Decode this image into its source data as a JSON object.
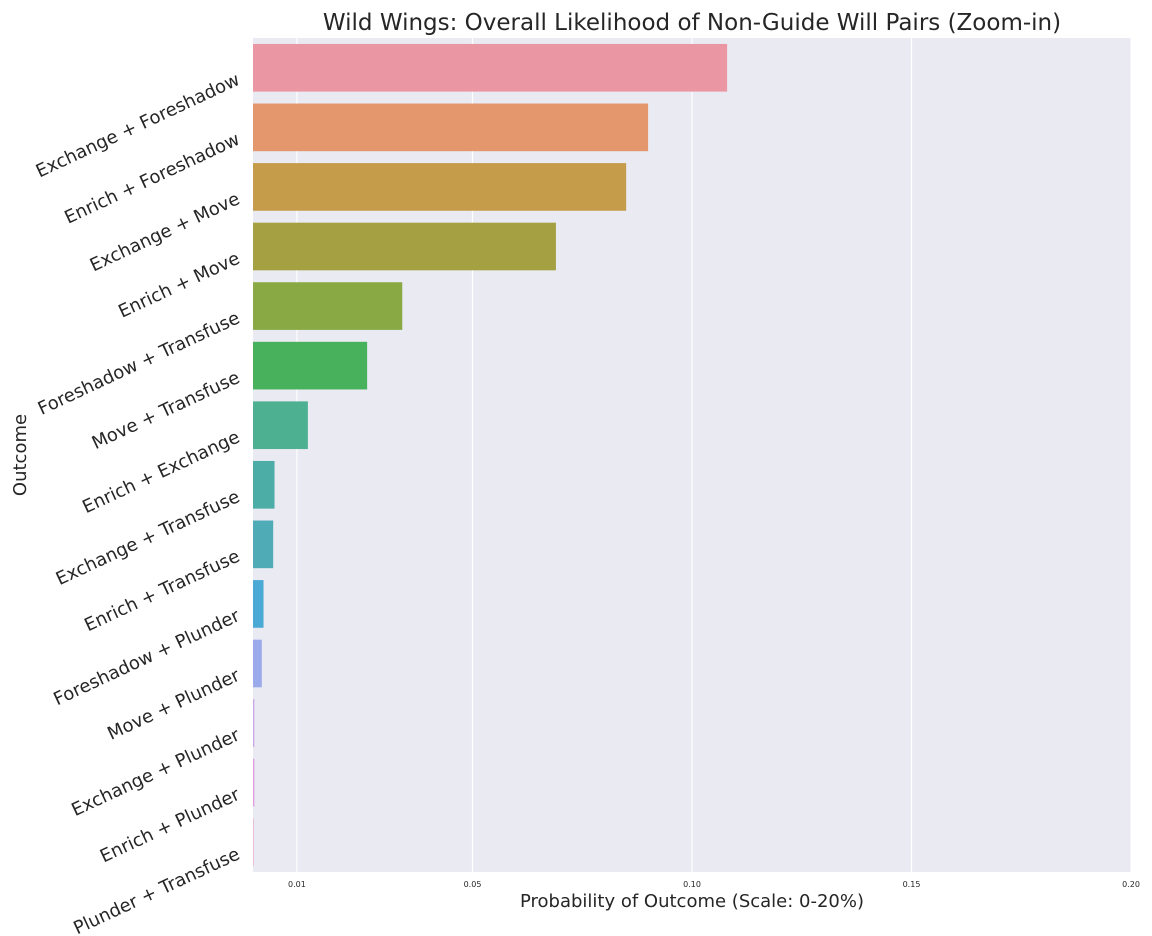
{
  "chart_data": {
    "type": "bar",
    "orientation": "horizontal",
    "title": "Wild Wings: Overall Likelihood of Non-Guide Will Pairs (Zoom-in)",
    "xlabel": "Probability of Outcome (Scale: 0-20%)",
    "ylabel": "Outcome",
    "xlim": [
      0,
      0.2
    ],
    "xticks": [
      {
        "value": 0.01,
        "label": "0.01"
      },
      {
        "value": 0.05,
        "label": "0.05"
      },
      {
        "value": 0.1,
        "label": "0.10"
      },
      {
        "value": 0.15,
        "label": "0.15"
      },
      {
        "value": 0.2,
        "label": "0.20"
      }
    ],
    "grid": true,
    "categories": [
      "Exchange + Foreshadow",
      "Enrich + Foreshadow",
      "Exchange + Move",
      "Enrich + Move",
      "Foreshadow + Transfuse",
      "Move + Transfuse",
      "Enrich + Exchange",
      "Exchange + Transfuse",
      "Enrich + Transfuse",
      "Foreshadow + Plunder",
      "Move + Plunder",
      "Exchange + Plunder",
      "Enrich + Plunder",
      "Plunder + Transfuse"
    ],
    "values": [
      0.108,
      0.09,
      0.085,
      0.069,
      0.034,
      0.026,
      0.0125,
      0.0049,
      0.0046,
      0.0024,
      0.002,
      0.0003,
      0.0003,
      0.0001
    ],
    "colors": [
      "#eb97a3",
      "#e4966c",
      "#c49c4a",
      "#a5a042",
      "#88a944",
      "#47b15b",
      "#4cb091",
      "#4cada6",
      "#4facb6",
      "#4ba9d6",
      "#9aaaea",
      "#cca4ea",
      "#e29ae0",
      "#e9a0c6"
    ]
  }
}
